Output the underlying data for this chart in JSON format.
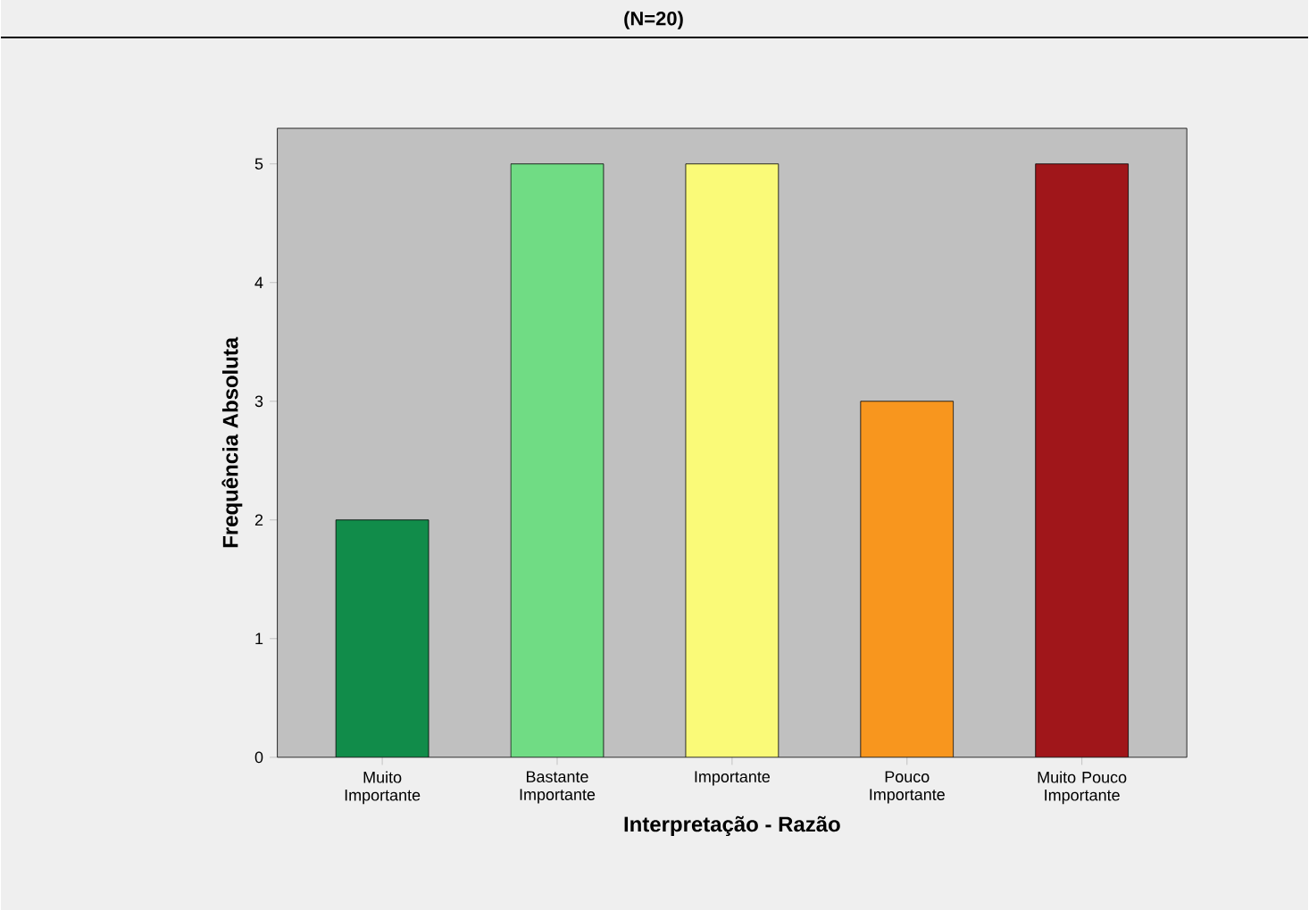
{
  "chart_data": {
    "type": "bar",
    "title": "(N=20)",
    "xlabel": "Interpretação - Razão",
    "ylabel": "Frequência Absoluta",
    "categories": [
      "Muito Importante",
      "Bastante Importante",
      "Importante",
      "Pouco Importante",
      "Muito Pouco Importante"
    ],
    "values": [
      2,
      5,
      5,
      3,
      5
    ],
    "colors": [
      "#118c4a",
      "#70dc84",
      "#fafa78",
      "#f8961e",
      "#a0161a"
    ],
    "ylim": [
      0,
      5.3
    ],
    "yticks": [
      0,
      1,
      2,
      3,
      4,
      5
    ],
    "grid": false
  }
}
